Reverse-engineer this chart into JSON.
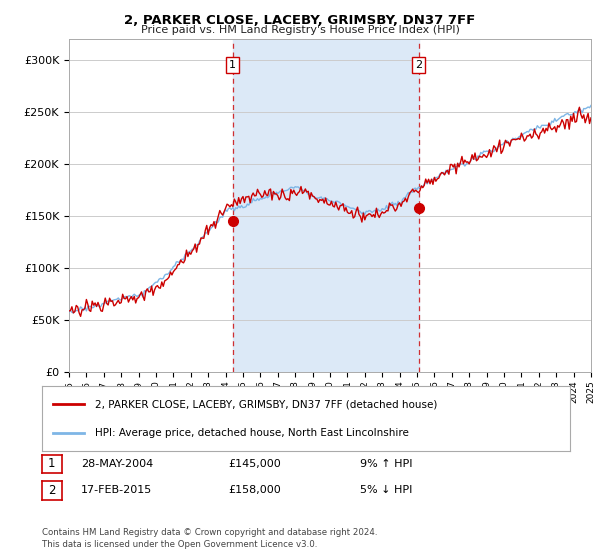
{
  "title": "2, PARKER CLOSE, LACEBY, GRIMSBY, DN37 7FF",
  "subtitle": "Price paid vs. HM Land Registry's House Price Index (HPI)",
  "background_color": "#ffffff",
  "plot_bg_color": "#ffffff",
  "grid_color": "#cccccc",
  "sale1_x": 2004.4,
  "sale1_price": 145000,
  "sale1_label": "1",
  "sale1_date_str": "28-MAY-2004",
  "sale1_pct": "9% ↑ HPI",
  "sale2_x": 2015.1,
  "sale2_price": 158000,
  "sale2_label": "2",
  "sale2_date_str": "17-FEB-2015",
  "sale2_pct": "5% ↓ HPI",
  "hpi_line_color": "#7eb6e6",
  "price_line_color": "#cc0000",
  "shade_color": "#dce9f7",
  "vline_color": "#cc0000",
  "legend_label1": "2, PARKER CLOSE, LACEBY, GRIMSBY, DN37 7FF (detached house)",
  "legend_label2": "HPI: Average price, detached house, North East Lincolnshire",
  "footnote1": "Contains HM Land Registry data © Crown copyright and database right 2024.",
  "footnote2": "This data is licensed under the Open Government Licence v3.0.",
  "ylim": [
    0,
    320000
  ],
  "yticks": [
    0,
    50000,
    100000,
    150000,
    200000,
    250000,
    300000
  ],
  "ytick_labels": [
    "£0",
    "£50K",
    "£100K",
    "£150K",
    "£200K",
    "£250K",
    "£300K"
  ],
  "xlim_start": 1995,
  "xlim_end": 2025
}
